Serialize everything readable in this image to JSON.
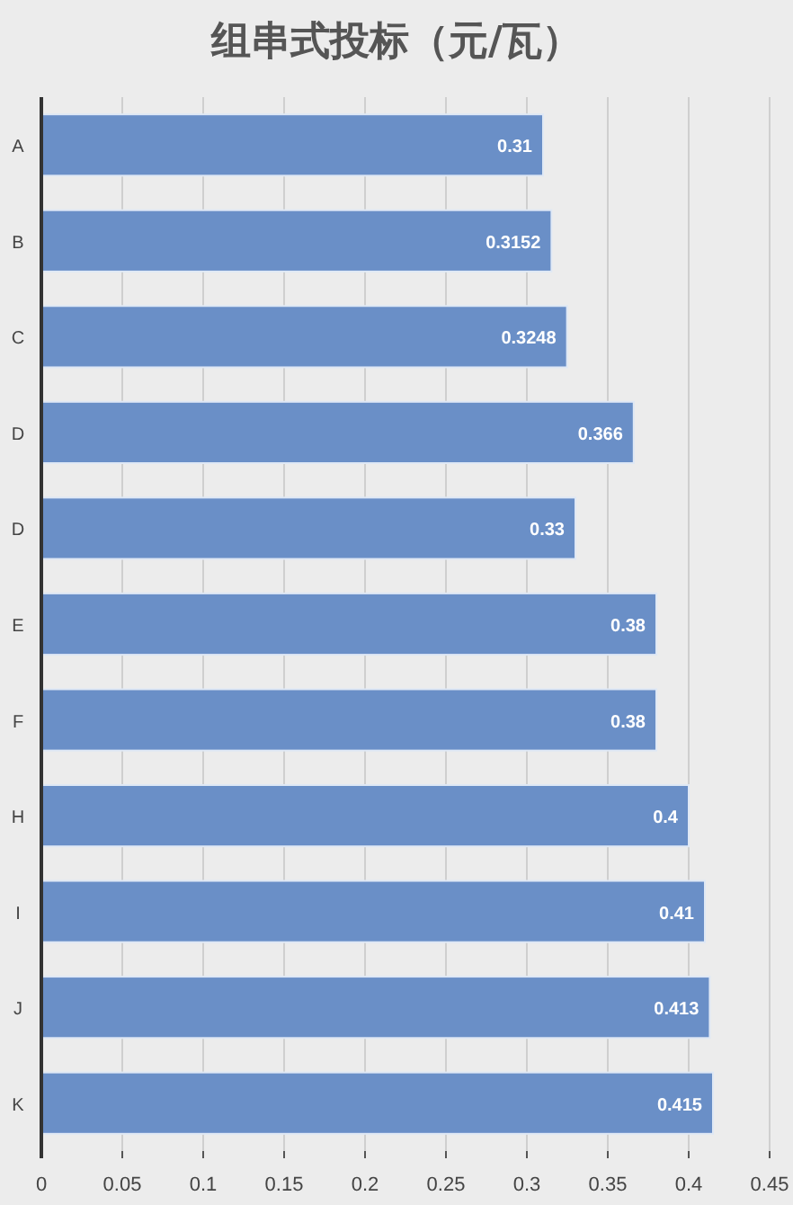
{
  "chart_data": {
    "type": "bar",
    "orientation": "horizontal",
    "title": "组串式投标（元/瓦）",
    "categories": [
      "A",
      "B",
      "C",
      "D",
      "D",
      "E",
      "F",
      "H",
      "I",
      "J",
      "K"
    ],
    "values": [
      0.31,
      0.3152,
      0.3248,
      0.366,
      0.33,
      0.38,
      0.38,
      0.4,
      0.41,
      0.413,
      0.415
    ],
    "color": "#6a8fc7",
    "data_labels": true,
    "grid": "x",
    "xlim": [
      0,
      0.45
    ],
    "xticks": [
      0,
      0.05,
      0.1,
      0.15,
      0.2,
      0.25,
      0.3,
      0.35,
      0.4,
      0.45
    ]
  }
}
